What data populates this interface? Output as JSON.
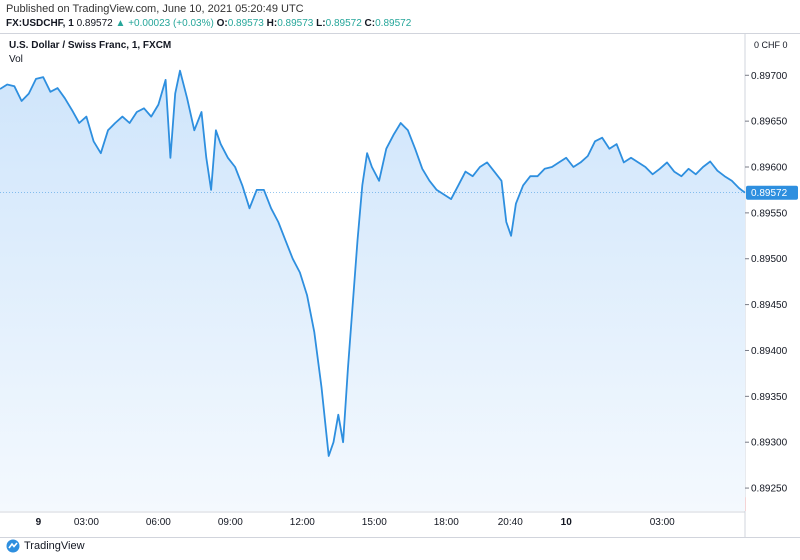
{
  "header": {
    "published": "Published on TradingView.com, June 10, 2021 05:20:49 UTC",
    "symbol": "FX:USDCHF, 1",
    "last": "0.89572",
    "arrow": "▲",
    "change": "+0.00023 (+0.03%)",
    "o_label": "O:",
    "o_value": "0.89573",
    "h_label": "H:",
    "h_value": "0.89573",
    "l_label": "L:",
    "l_value": "0.89572",
    "c_label": "C:",
    "c_value": "0.89572"
  },
  "pane": {
    "title": "U.S. Dollar / Swiss Franc, 1, FXCM",
    "vol_label": "Vol",
    "currency": "0  CHF 0"
  },
  "footer": {
    "brand": "TradingView",
    "logo_icon": "tradingview-logo-icon"
  },
  "colors": {
    "line": "#2e8fdf",
    "area_top": "#cfe5fb",
    "area_bottom": "#f4f9fe",
    "vol_up": "#7fcbb0",
    "vol_down": "#f2a0a0",
    "last_price_label": "#2e8fdf"
  },
  "chart_data": {
    "type": "area",
    "title": "U.S. Dollar / Swiss Franc, 1, FXCM",
    "xlabel": "",
    "ylabel": "",
    "x_ticks": [
      "9",
      "03:00",
      "06:00",
      "09:00",
      "12:00",
      "15:00",
      "18:00",
      "20:40",
      "10",
      "03:00"
    ],
    "x_tick_pos": [
      1,
      3,
      6,
      9,
      12,
      15,
      18,
      20.667,
      23,
      27
    ],
    "y_ticks": [
      "0.89700",
      "0.89650",
      "0.89600",
      "0.89550",
      "0.89500",
      "0.89450",
      "0.89400",
      "0.89350",
      "0.89300",
      "0.89250"
    ],
    "ylim": [
      0.89225,
      0.89745
    ],
    "xlim": [
      -0.6,
      30.45
    ],
    "last_value": "0.89572",
    "grid": false,
    "series": [
      {
        "x": [
          -0.6,
          -0.3,
          0,
          0.3,
          0.6,
          0.9,
          1.2,
          1.5,
          1.8,
          2.1,
          2.4,
          2.7,
          3.0,
          3.3,
          3.6,
          3.9,
          4.2,
          4.5,
          4.8,
          5.1,
          5.4,
          5.7,
          6.0,
          6.3,
          6.5,
          6.7,
          6.9,
          7.2,
          7.5,
          7.8,
          8.0,
          8.2,
          8.4,
          8.6,
          8.9,
          9.2,
          9.5,
          9.8,
          10.1,
          10.4,
          10.7,
          11.0,
          11.3,
          11.6,
          11.9,
          12.2,
          12.5,
          12.8,
          13.1,
          13.3,
          13.5,
          13.7,
          13.9,
          14.1,
          14.3,
          14.5,
          14.7,
          14.9,
          15.2,
          15.5,
          15.8,
          16.1,
          16.4,
          16.7,
          17.0,
          17.3,
          17.6,
          17.9,
          18.2,
          18.5,
          18.8,
          19.1,
          19.4,
          19.7,
          20.0,
          20.3,
          20.5,
          20.7,
          20.9,
          21.2,
          21.5,
          21.8,
          22.1,
          22.4,
          22.7,
          23.0,
          23.3,
          23.6,
          23.9,
          24.2,
          24.5,
          24.8,
          25.1,
          25.4,
          25.7,
          26.0,
          26.3,
          26.6,
          26.9,
          27.2,
          27.5,
          27.8,
          28.1,
          28.4,
          28.7,
          29.0,
          29.3,
          29.6,
          29.9,
          30.2,
          30.45
        ],
        "values": [
          0.89685,
          0.8969,
          0.89688,
          0.89672,
          0.8968,
          0.89696,
          0.89698,
          0.89682,
          0.89686,
          0.89675,
          0.89662,
          0.89648,
          0.89655,
          0.89628,
          0.89615,
          0.8964,
          0.89648,
          0.89655,
          0.89648,
          0.8966,
          0.89664,
          0.89655,
          0.89668,
          0.89695,
          0.8961,
          0.8968,
          0.89705,
          0.89675,
          0.8964,
          0.8966,
          0.8961,
          0.89575,
          0.8964,
          0.89625,
          0.8961,
          0.896,
          0.8958,
          0.89555,
          0.89575,
          0.89575,
          0.89555,
          0.8954,
          0.8952,
          0.895,
          0.89485,
          0.8946,
          0.8942,
          0.8936,
          0.89285,
          0.893,
          0.8933,
          0.893,
          0.8938,
          0.8945,
          0.8952,
          0.8958,
          0.89615,
          0.896,
          0.89585,
          0.8962,
          0.89635,
          0.89648,
          0.8964,
          0.8962,
          0.89598,
          0.89585,
          0.89575,
          0.8957,
          0.89565,
          0.8958,
          0.89595,
          0.8959,
          0.896,
          0.89605,
          0.89595,
          0.89585,
          0.8954,
          0.89525,
          0.8956,
          0.8958,
          0.8959,
          0.8959,
          0.89598,
          0.896,
          0.89605,
          0.8961,
          0.896,
          0.89605,
          0.89612,
          0.89628,
          0.89632,
          0.8962,
          0.89625,
          0.89605,
          0.8961,
          0.89605,
          0.896,
          0.89592,
          0.89598,
          0.89605,
          0.89595,
          0.8959,
          0.89598,
          0.89592,
          0.896,
          0.89606,
          0.89596,
          0.8959,
          0.89585,
          0.89577,
          0.89572
        ]
      }
    ]
  }
}
